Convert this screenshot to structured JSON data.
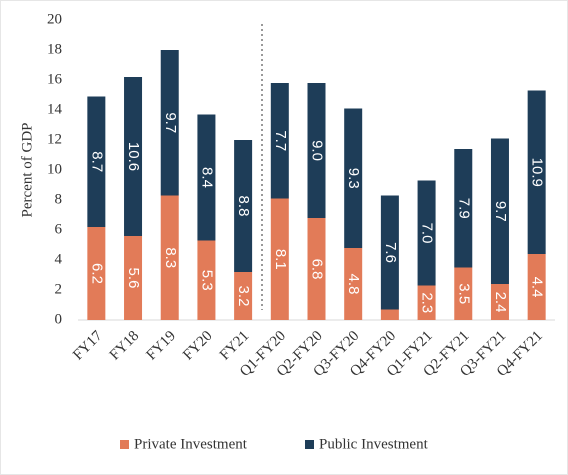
{
  "chart_data": {
    "type": "stacked_bar",
    "y_label": "Percent of GDP",
    "categories": [
      "FY17",
      "FY18",
      "FY19",
      "FY20",
      "FY21",
      "Q1-FY20",
      "Q2-FY20",
      "Q3-FY20",
      "Q4-FY20",
      "Q1-FY21",
      "Q2-FY21",
      "Q3-FY21",
      "Q4-FY21"
    ],
    "series": [
      {
        "name": "Private Investment",
        "color": "#e27b58",
        "values": [
          6.2,
          5.6,
          8.3,
          5.3,
          3.2,
          8.1,
          6.8,
          4.8,
          0.7,
          2.3,
          3.5,
          2.4,
          4.4
        ],
        "value_labels": [
          "6.2",
          "5.6",
          "8.3",
          "5.3",
          "3.2",
          "8.1",
          "6.8",
          "4.8",
          null,
          "2.3",
          "3.5",
          "2.4",
          "4.4"
        ]
      },
      {
        "name": "Public Investment",
        "color": "#1e3d58",
        "values": [
          8.7,
          10.6,
          9.7,
          8.4,
          8.8,
          7.7,
          9.0,
          9.3,
          7.6,
          7.0,
          7.9,
          9.7,
          10.9
        ],
        "value_labels": [
          "8.7",
          "10.6",
          "9.7",
          "8.4",
          "8.8",
          "7.7",
          "9.0",
          "9.3",
          "7.6",
          "7.0",
          "7.9",
          "9.7",
          "10.9"
        ]
      }
    ],
    "ylim": [
      0,
      20
    ],
    "yticks": [
      0,
      2,
      4,
      6,
      8,
      10,
      12,
      14,
      16,
      18,
      20
    ],
    "legend": "bottom"
  }
}
